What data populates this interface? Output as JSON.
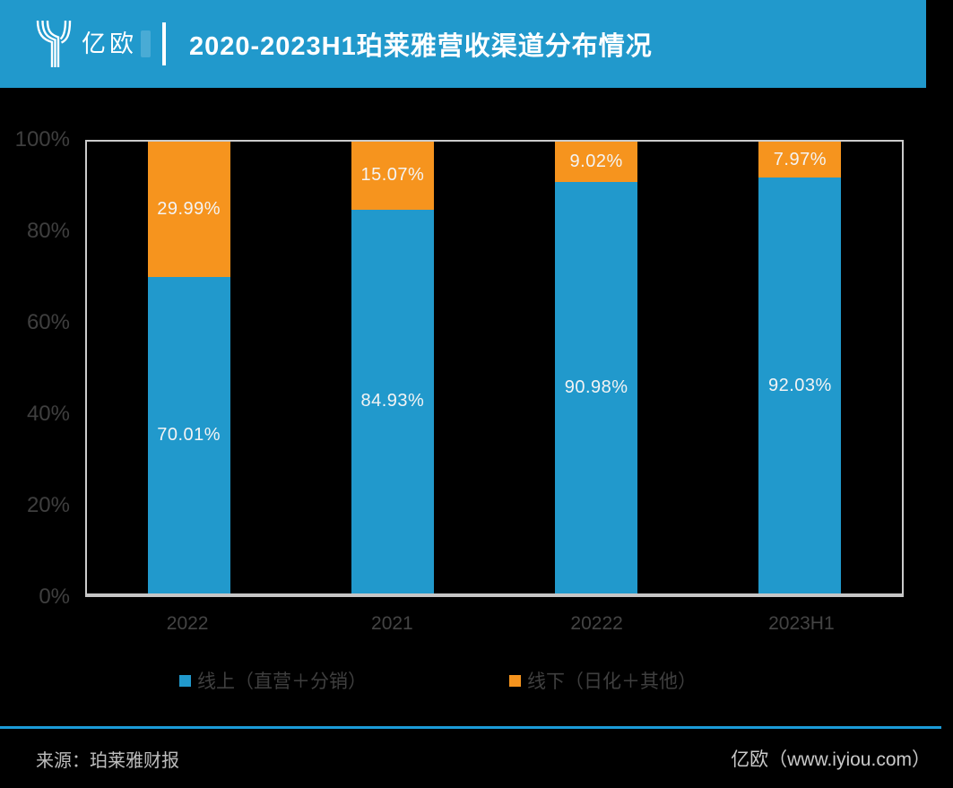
{
  "header": {
    "logo_text": "亿欧",
    "title": "2020-2023H1珀莱雅营收渠道分布情况"
  },
  "chart_data": {
    "type": "bar",
    "stacked": true,
    "title": "2020-2023H1珀莱雅营收渠道分布情况",
    "categories": [
      "2022",
      "2021",
      "20222",
      "2023H1"
    ],
    "series": [
      {
        "name": "线上（直营＋分销）",
        "color": "#2199cc",
        "values": [
          70.01,
          84.93,
          90.98,
          92.03
        ],
        "labels": [
          "70.01%",
          "84.93%",
          "90.98%",
          "92.03%"
        ]
      },
      {
        "name": "线下（日化＋其他）",
        "color": "#f6941e",
        "values": [
          29.99,
          15.07,
          9.02,
          7.97
        ],
        "labels": [
          "29.99%",
          "15.07%",
          "9.02%",
          "7.97%"
        ]
      }
    ],
    "xlabel": "",
    "ylabel": "",
    "ylim": [
      0,
      100
    ],
    "yticks": [
      "0%",
      "20%",
      "40%",
      "60%",
      "80%",
      "100%"
    ],
    "grid": false,
    "legend_position": "bottom"
  },
  "footer": {
    "source": "来源：珀莱雅财报",
    "credit": "亿欧（www.iyiou.com）"
  },
  "colors": {
    "background": "#000000",
    "header_blue": "#2199cc",
    "bar_blue": "#2199cc",
    "bar_orange": "#f6941e",
    "divider_blue": "#1b9bd8",
    "axis_text": "#3f3f3f",
    "plot_border": "#cbcbcb",
    "value_label": "#f4f4f4"
  }
}
